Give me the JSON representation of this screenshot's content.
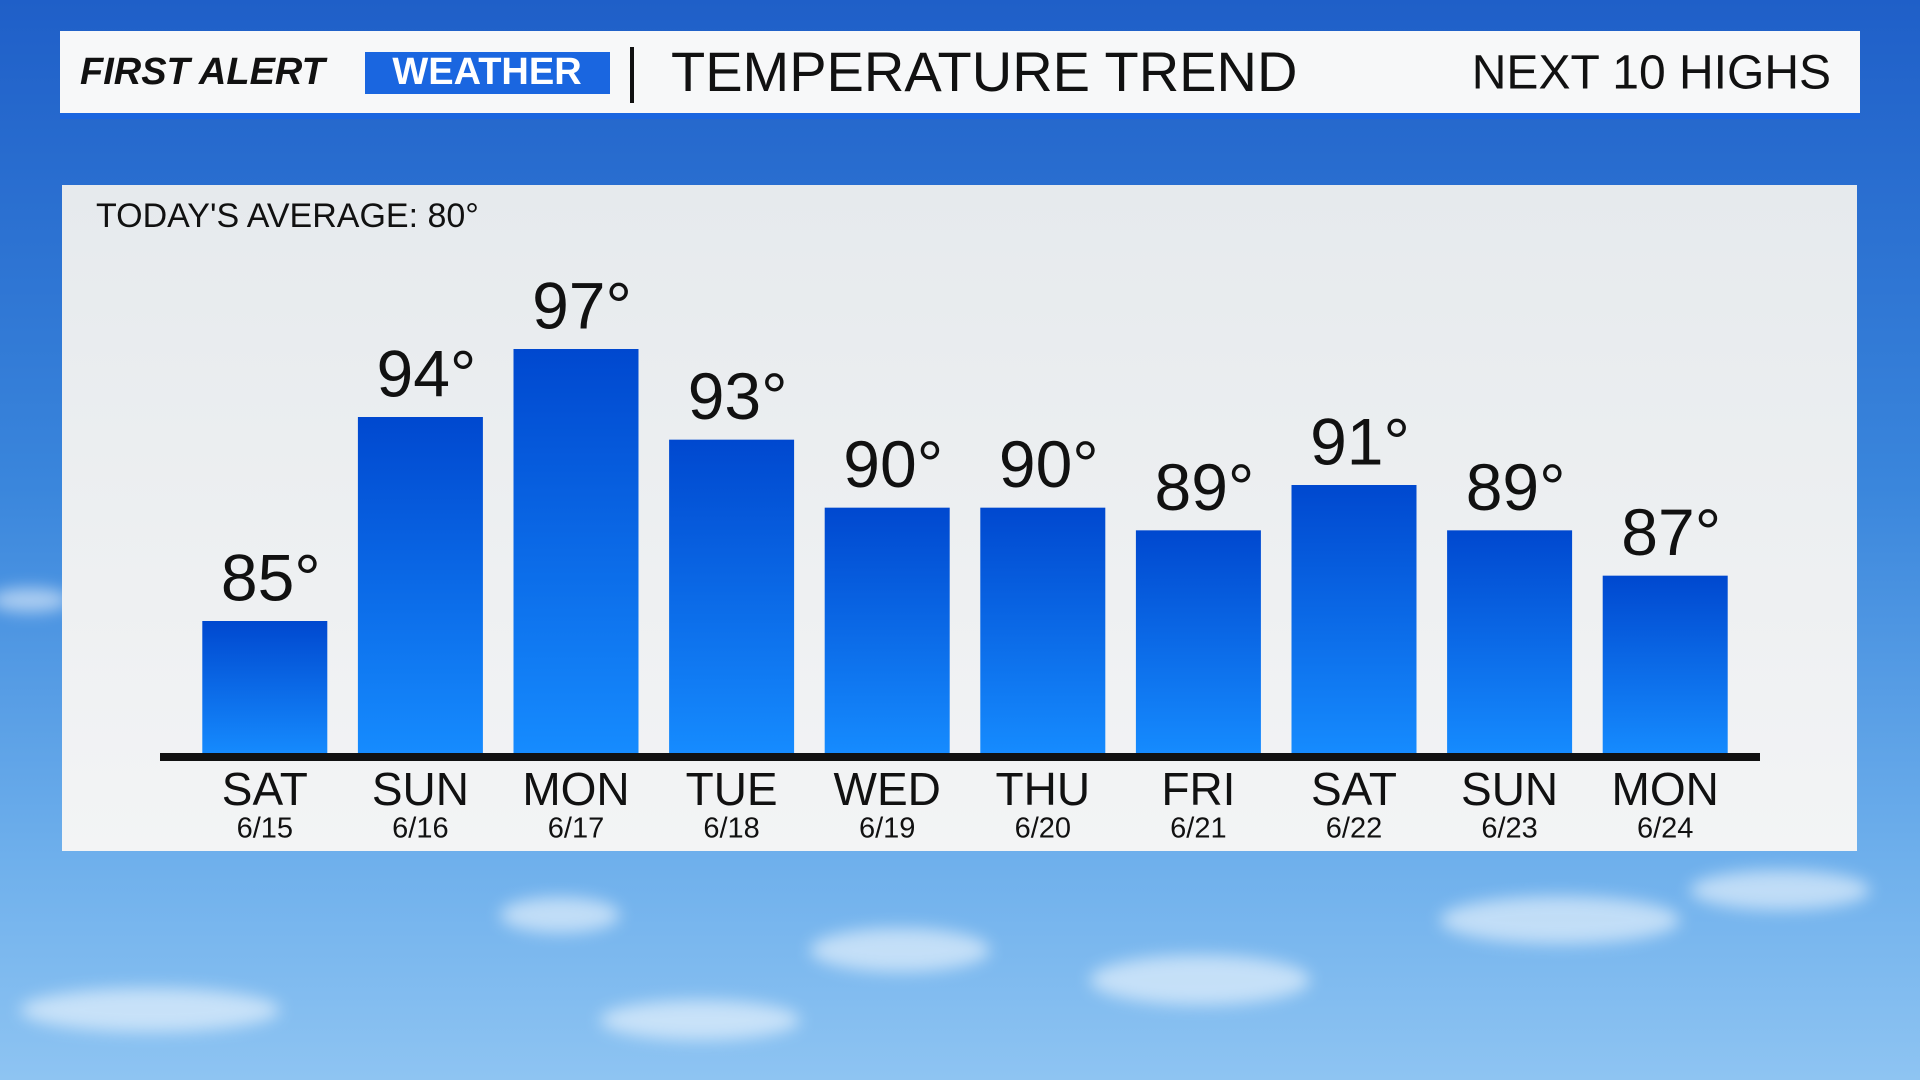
{
  "brand": {
    "first": "FIRST ALERT",
    "second": "WEATHER"
  },
  "chart_data": {
    "type": "bar",
    "title": "TEMPERATURE TREND",
    "subtitle": "NEXT 10 HIGHS",
    "annotation": "TODAY'S AVERAGE: 80°",
    "categories": [
      "SAT",
      "SUN",
      "MON",
      "TUE",
      "WED",
      "THU",
      "FRI",
      "SAT",
      "SUN",
      "MON"
    ],
    "dates": [
      "6/15",
      "6/16",
      "6/17",
      "6/18",
      "6/19",
      "6/20",
      "6/21",
      "6/22",
      "6/23",
      "6/24"
    ],
    "values": [
      85,
      94,
      97,
      93,
      90,
      90,
      89,
      91,
      89,
      87
    ],
    "value_labels": [
      "85°",
      "94°",
      "97°",
      "93°",
      "90°",
      "90°",
      "89°",
      "91°",
      "89°",
      "87°"
    ],
    "ylim": [
      79,
      100
    ],
    "color": "#0a5fe0"
  }
}
